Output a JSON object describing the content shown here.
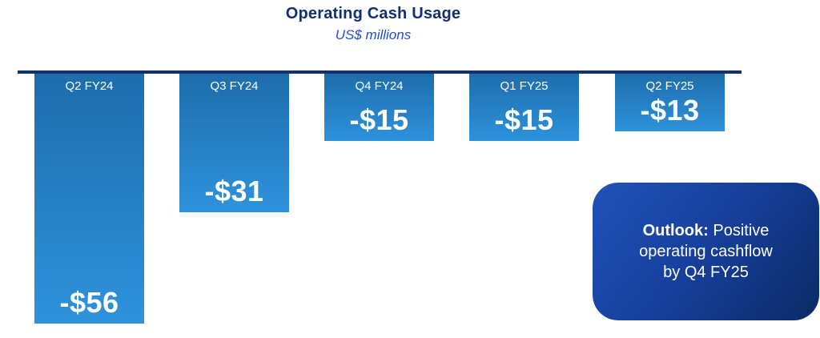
{
  "header": {
    "title": "Operating Cash Usage",
    "subtitle": "US$ millions"
  },
  "chart_data": {
    "type": "bar",
    "title": "Operating Cash Usage",
    "subtitle_unit": "US$ millions",
    "categories": [
      "Q2 FY24",
      "Q3 FY24",
      "Q4 FY24",
      "Q1 FY25",
      "Q2 FY25"
    ],
    "values": [
      -56,
      -31,
      -15,
      -15,
      -13
    ],
    "value_labels": [
      "-$56",
      "-$31",
      "-$15",
      "-$15",
      "-$13"
    ],
    "ylim": [
      -60,
      0
    ],
    "baseline": 0,
    "grid": false,
    "legend": "none",
    "orientation": "columns-below-zero-line",
    "bar_color_top": "#1d6dab",
    "bar_color_bottom": "#2e92dc",
    "axis_line_color": "#12306b"
  },
  "callout": {
    "heading": "Outlook:",
    "line1_rest": " Positive",
    "line2": "operating cashflow",
    "line3": "by Q4 FY25",
    "gradient_start": "#1f52b8",
    "gradient_end": "#0c2a66",
    "text_color": "#ffffff"
  },
  "colors": {
    "title": "#12306b",
    "subtitle": "#2050d0",
    "bar_text": "#ffffff",
    "background": "#ffffff"
  }
}
